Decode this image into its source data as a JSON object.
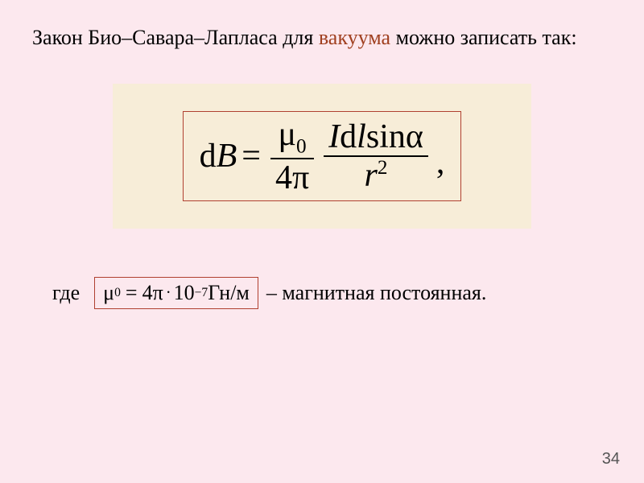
{
  "colors": {
    "slide_background": "#fce8ee",
    "formula_area_background": "#f7edd8",
    "formula_box_border": "#b04030",
    "constant_box_border": "#b04030",
    "highlight_text": "#a04020",
    "page_num_color": "#555555"
  },
  "heading": {
    "part1": "Закон Био–Савара–Лапласа для ",
    "highlight": "вакуума",
    "part2": " можно записать так:"
  },
  "main_formula": {
    "lhs_d": "d",
    "lhs_B": "B",
    "eq": "=",
    "frac1_num_mu": "μ",
    "frac1_num_sub": "0",
    "frac1_den_4": "4",
    "frac1_den_pi": "π",
    "frac2_num_I": "I",
    "frac2_num_d": "d",
    "frac2_num_l": "l",
    "frac2_num_sin": "sin",
    "frac2_num_alpha": "α",
    "frac2_den_r": "r",
    "frac2_den_sup": "2",
    "comma": ","
  },
  "constant_row": {
    "where": "где",
    "mu": "μ",
    "sub0": "0",
    "eq": "=",
    "four": "4",
    "pi": "π",
    "dot": "·",
    "ten": "10",
    "exp": "−7",
    "unit": " Гн/м",
    "description": "– магнитная постоянная."
  },
  "page_number": "34"
}
